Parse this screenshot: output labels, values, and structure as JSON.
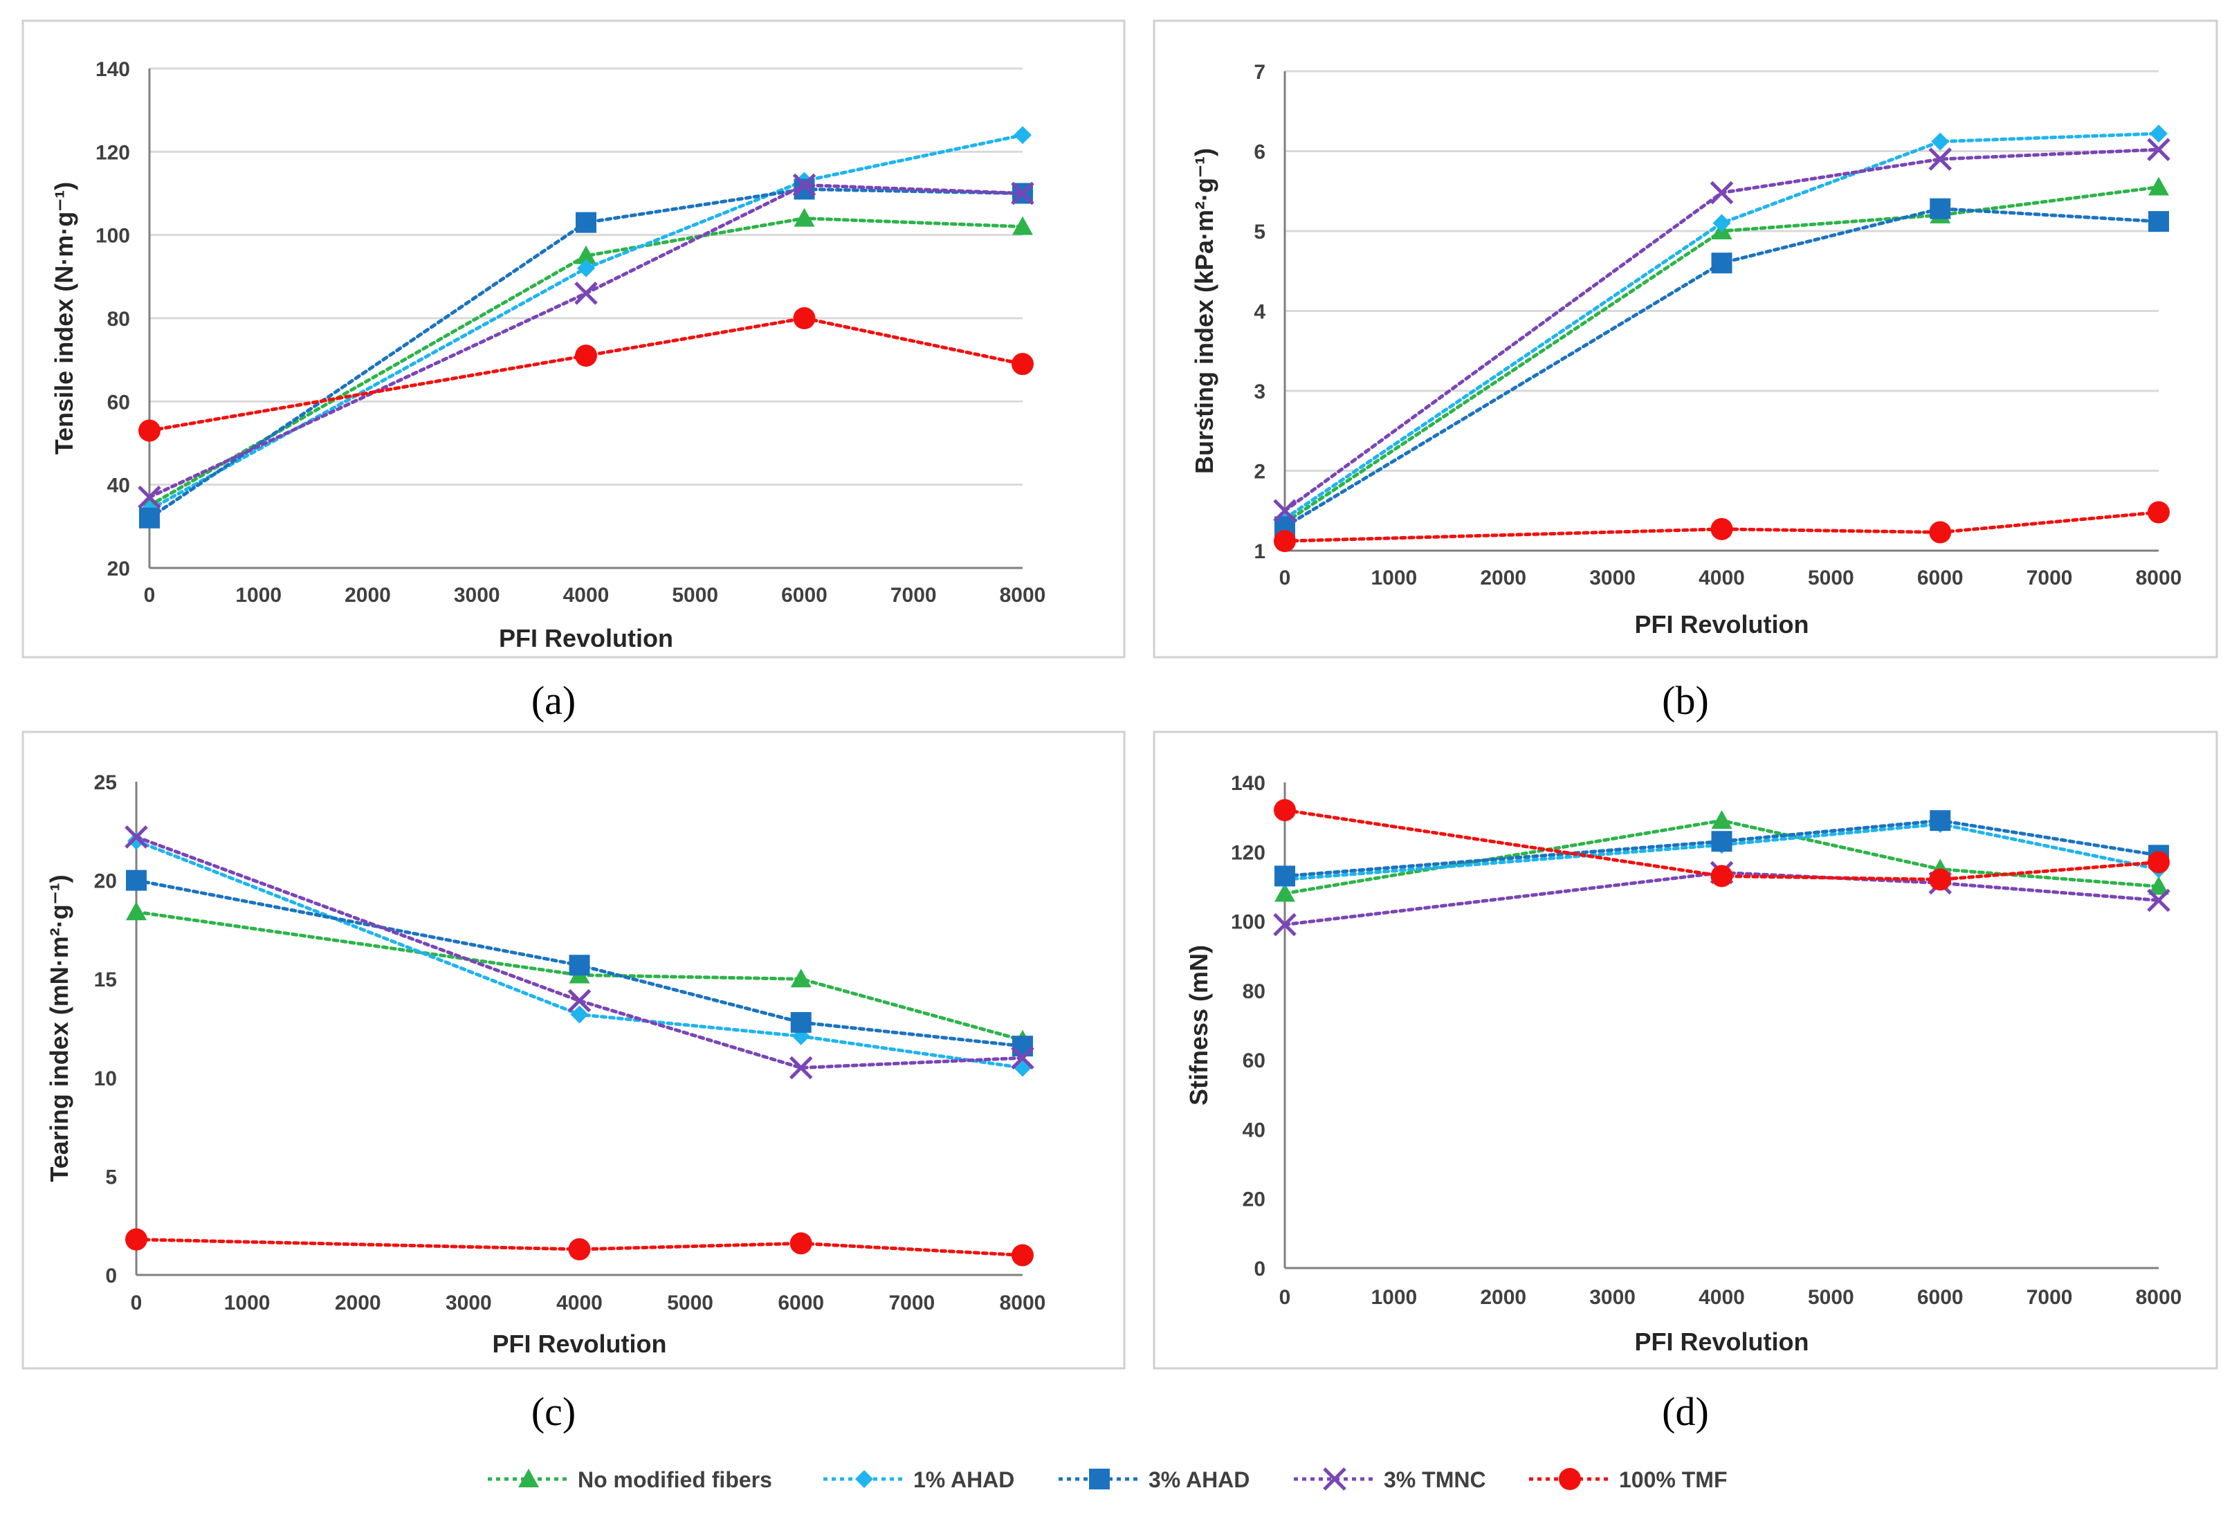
{
  "chart_data": [
    {
      "id": "a",
      "type": "line",
      "caption": "(a)",
      "xlabel": "PFI  Revolution",
      "ylabel": "Tensile index (N·m·g⁻¹)",
      "x": [
        0,
        4000,
        6000,
        8000
      ],
      "xlim": [
        0,
        8000
      ],
      "xticks": [
        0,
        1000,
        2000,
        3000,
        4000,
        5000,
        6000,
        7000,
        8000
      ],
      "ylim": [
        20,
        140
      ],
      "yticks": [
        20,
        40,
        60,
        80,
        100,
        120,
        140
      ],
      "grid": true,
      "series": [
        {
          "name": "No modified fibers",
          "values": [
            35,
            95,
            104,
            102
          ]
        },
        {
          "name": "1% AHAD",
          "values": [
            34,
            92,
            113,
            124
          ]
        },
        {
          "name": "3% AHAD",
          "values": [
            32,
            103,
            111,
            110
          ]
        },
        {
          "name": "3% TMNC",
          "values": [
            37,
            86,
            112,
            110
          ]
        },
        {
          "name": "100% TMF",
          "values": [
            53,
            71,
            80,
            69
          ]
        }
      ]
    },
    {
      "id": "b",
      "type": "line",
      "caption": "(b)",
      "xlabel": "PFI  Revolution",
      "ylabel": "Bursting index (kPa·m²·g⁻¹)",
      "x": [
        0,
        4000,
        6000,
        8000
      ],
      "xlim": [
        0,
        8000
      ],
      "xticks": [
        0,
        1000,
        2000,
        3000,
        4000,
        5000,
        6000,
        7000,
        8000
      ],
      "ylim": [
        1,
        7
      ],
      "yticks": [
        1,
        2,
        3,
        4,
        5,
        6,
        7
      ],
      "grid": true,
      "series": [
        {
          "name": "No modified fibers",
          "values": [
            1.35,
            5.0,
            5.2,
            5.55
          ]
        },
        {
          "name": "1% AHAD",
          "values": [
            1.4,
            5.1,
            6.12,
            6.22
          ]
        },
        {
          "name": "3% AHAD",
          "values": [
            1.3,
            4.6,
            5.28,
            5.12
          ]
        },
        {
          "name": "3% TMNC",
          "values": [
            1.5,
            5.48,
            5.9,
            6.02
          ]
        },
        {
          "name": "100% TMF",
          "values": [
            1.12,
            1.27,
            1.23,
            1.48
          ]
        }
      ]
    },
    {
      "id": "c",
      "type": "line",
      "caption": "(c)",
      "xlabel": "PFI  Revolution",
      "ylabel": "Tearing index (mN·m²·g⁻¹)",
      "x": [
        0,
        4000,
        6000,
        8000
      ],
      "xlim": [
        0,
        8000
      ],
      "xticks": [
        0,
        1000,
        2000,
        3000,
        4000,
        5000,
        6000,
        7000,
        8000
      ],
      "ylim": [
        0,
        25
      ],
      "yticks": [
        0,
        5,
        10,
        15,
        20,
        25
      ],
      "grid": false,
      "series": [
        {
          "name": "No modified fibers",
          "values": [
            18.4,
            15.2,
            15.0,
            11.9
          ]
        },
        {
          "name": "1% AHAD",
          "values": [
            22.0,
            13.2,
            12.1,
            10.5
          ]
        },
        {
          "name": "3% AHAD",
          "values": [
            20.0,
            15.7,
            12.8,
            11.6
          ]
        },
        {
          "name": "3% TMNC",
          "values": [
            22.2,
            13.9,
            10.5,
            11.0
          ]
        },
        {
          "name": "100% TMF",
          "values": [
            1.8,
            1.3,
            1.6,
            1.0
          ]
        }
      ]
    },
    {
      "id": "d",
      "type": "line",
      "caption": "(d)",
      "xlabel": "PFI  Revolution",
      "ylabel": "Stifness (mN)",
      "x": [
        0,
        4000,
        6000,
        8000
      ],
      "xlim": [
        0,
        8000
      ],
      "xticks": [
        0,
        1000,
        2000,
        3000,
        4000,
        5000,
        6000,
        7000,
        8000
      ],
      "ylim": [
        0,
        140
      ],
      "yticks": [
        0,
        20,
        40,
        60,
        80,
        100,
        120,
        140
      ],
      "grid": false,
      "series": [
        {
          "name": "No modified fibers",
          "values": [
            108,
            129,
            115,
            110
          ]
        },
        {
          "name": "1% AHAD",
          "values": [
            112,
            122,
            128,
            115
          ]
        },
        {
          "name": "3% AHAD",
          "values": [
            113,
            123,
            129,
            119
          ]
        },
        {
          "name": "3% TMNC",
          "values": [
            99,
            114,
            111,
            106
          ]
        },
        {
          "name": "100% TMF",
          "values": [
            132,
            113,
            112,
            117
          ]
        }
      ]
    }
  ],
  "legend": {
    "position": "bottom",
    "items": [
      {
        "label": "No modified fibers",
        "color": "#2db34a",
        "marker": "triangle"
      },
      {
        "label": "1% AHAD",
        "color": "#1fb4ee",
        "marker": "diamond"
      },
      {
        "label": "3% AHAD",
        "color": "#1b73c0",
        "marker": "square"
      },
      {
        "label": "3% TMNC",
        "color": "#7a45b5",
        "marker": "cross"
      },
      {
        "label": "100% TMF",
        "color": "#f2100e",
        "marker": "circle"
      }
    ]
  }
}
